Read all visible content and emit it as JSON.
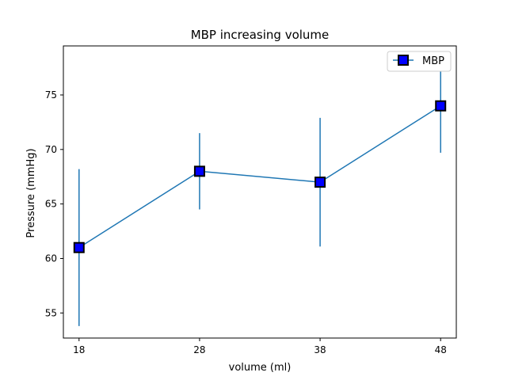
{
  "chart_data": {
    "type": "line",
    "title": "MBP increasing volume",
    "xlabel": "volume (ml)",
    "ylabel": "Pressure (mmHg)",
    "x": [
      18,
      28,
      38,
      48
    ],
    "xticks": [
      "18",
      "28",
      "38",
      "48"
    ],
    "yticks": [
      "55",
      "60",
      "65",
      "70",
      "75"
    ],
    "xlim": [
      16.7,
      49.3
    ],
    "ylim": [
      52.7,
      79.5
    ],
    "grid": false,
    "legend": {
      "position": "top-right"
    },
    "series": [
      {
        "name": "MBP",
        "values": [
          61,
          68,
          67,
          74
        ],
        "error": [
          7.2,
          3.5,
          5.9,
          4.3
        ],
        "line_color": "#1f77b4",
        "marker": "square",
        "marker_color": "#0000ff",
        "marker_edge_color": "#000000"
      }
    ]
  }
}
